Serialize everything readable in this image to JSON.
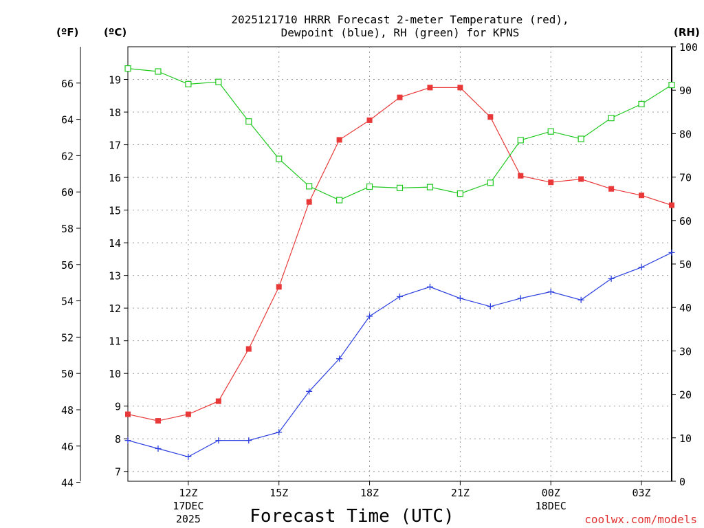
{
  "chart_data": {
    "type": "line",
    "title_line1": "2025121710 HRRR Forecast 2-meter Temperature (red),",
    "title_line2": "Dewpoint (blue), RH (green) for KPNS",
    "xlabel": "Forecast Time (UTC)",
    "credit": "coolwx.com/models",
    "units": {
      "fahrenheit": "(ºF)",
      "celsius": "(ºC)",
      "rh": "(RH)"
    },
    "hours": [
      10,
      11,
      12,
      13,
      14,
      15,
      16,
      17,
      18,
      19,
      20,
      21,
      22,
      23,
      24,
      25,
      26,
      27,
      28
    ],
    "xlim": [
      10,
      28
    ],
    "x_ticks": [
      {
        "hour": 12,
        "label": "12Z",
        "sub1": "17DEC",
        "sub2": "2025"
      },
      {
        "hour": 15,
        "label": "15Z"
      },
      {
        "hour": 18,
        "label": "18Z"
      },
      {
        "hour": 21,
        "label": "21Z"
      },
      {
        "hour": 24,
        "label": "00Z",
        "sub1": "18DEC"
      },
      {
        "hour": 27,
        "label": "03Z"
      }
    ],
    "celsius_axis": {
      "range": [
        6.7,
        20.0
      ],
      "ticks": [
        7,
        8,
        9,
        10,
        11,
        12,
        13,
        14,
        15,
        16,
        17,
        18,
        19
      ]
    },
    "fahrenheit_axis": {
      "ticks": [
        44,
        46,
        48,
        50,
        52,
        54,
        56,
        58,
        60,
        62,
        64,
        66
      ]
    },
    "rh_axis": {
      "range": [
        0,
        100
      ],
      "ticks": [
        0,
        10,
        20,
        30,
        40,
        50,
        60,
        70,
        80,
        90,
        100
      ]
    },
    "series": [
      {
        "name": "Temperature",
        "axis": "celsius",
        "color": "#e83838",
        "marker": "square-filled",
        "values": [
          8.75,
          8.55,
          8.75,
          9.15,
          10.75,
          12.65,
          15.25,
          17.15,
          17.75,
          18.45,
          18.75,
          18.75,
          17.85,
          16.05,
          15.85,
          15.95,
          15.65,
          15.45,
          15.15
        ]
      },
      {
        "name": "Dewpoint",
        "axis": "celsius",
        "color": "#2b3fe0",
        "marker": "plus",
        "values": [
          7.95,
          7.7,
          7.45,
          7.95,
          7.95,
          8.2,
          9.45,
          10.45,
          11.75,
          12.35,
          12.65,
          12.3,
          12.05,
          12.3,
          12.5,
          12.25,
          12.9,
          13.25,
          13.7
        ]
      },
      {
        "name": "RH",
        "axis": "rh",
        "color": "#1ec81e",
        "marker": "square-open",
        "values": [
          95,
          94.3,
          91.4,
          91.9,
          82.8,
          74.2,
          67.9,
          64.7,
          67.8,
          67.5,
          67.7,
          66.2,
          68.7,
          78.5,
          80.5,
          78.8,
          83.6,
          86.8,
          91.2
        ]
      }
    ]
  }
}
